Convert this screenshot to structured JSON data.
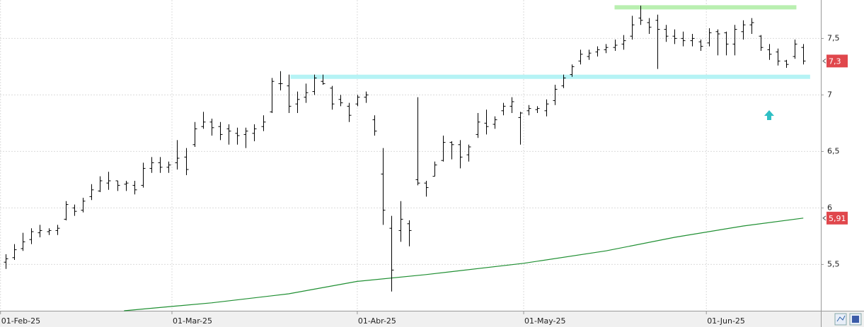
{
  "chart_data": {
    "type": "ohlc",
    "color": "#000000",
    "open": [
      5.52,
      5.56,
      5.64,
      5.72,
      5.78,
      5.79,
      5.8,
      5.9,
      6.0,
      5.98,
      6.1,
      6.15,
      6.22,
      6.24,
      6.21,
      6.2,
      6.2,
      6.35,
      6.4,
      6.36,
      6.4,
      6.45,
      6.56,
      6.72,
      6.76,
      6.72,
      6.7,
      6.66,
      6.65,
      6.66,
      6.72,
      6.85,
      7.1,
      7.08,
      6.92,
      6.98,
      7.03,
      7.12,
      7.06,
      6.96,
      6.9,
      6.92,
      6.98,
      6.78,
      6.3,
      5.82,
      5.8,
      5.86,
      6.25,
      6.22,
      6.28,
      6.42,
      6.58,
      6.56,
      6.47,
      6.65,
      6.75,
      6.74,
      6.86,
      6.9,
      6.8,
      6.86,
      6.87,
      6.86,
      6.95,
      7.08,
      7.18,
      7.3,
      7.34,
      7.38,
      7.4,
      7.42,
      7.45,
      7.52,
      7.68,
      7.64,
      7.66,
      7.58,
      7.52,
      7.5,
      7.48,
      7.47,
      7.46,
      7.56,
      7.55,
      7.45,
      7.56,
      7.62,
      7.52,
      7.4,
      7.38,
      7.3,
      7.34,
      7.42
    ],
    "high": [
      5.59,
      5.68,
      5.78,
      5.82,
      5.85,
      5.82,
      5.85,
      6.06,
      6.03,
      6.09,
      6.21,
      6.28,
      6.32,
      6.24,
      6.24,
      6.24,
      6.4,
      6.45,
      6.45,
      6.41,
      6.6,
      6.53,
      6.76,
      6.85,
      6.79,
      6.76,
      6.74,
      6.71,
      6.71,
      6.74,
      6.82,
      7.15,
      7.21,
      7.18,
      7.03,
      7.1,
      7.18,
      7.18,
      7.08,
      7.0,
      6.93,
      7.0,
      7.03,
      6.82,
      6.53,
      5.93,
      6.06,
      5.89,
      6.98,
      6.24,
      6.41,
      6.64,
      6.59,
      6.6,
      6.56,
      6.84,
      6.87,
      6.81,
      6.93,
      6.98,
      6.85,
      6.91,
      6.9,
      6.96,
      7.09,
      7.18,
      7.27,
      7.4,
      7.4,
      7.43,
      7.45,
      7.49,
      7.53,
      7.7,
      7.79,
      7.68,
      7.71,
      7.62,
      7.58,
      7.56,
      7.54,
      7.49,
      7.59,
      7.58,
      7.56,
      7.62,
      7.66,
      7.68,
      7.53,
      7.45,
      7.41,
      7.31,
      7.49,
      7.45
    ],
    "low": [
      5.46,
      5.54,
      5.62,
      5.68,
      5.74,
      5.76,
      5.76,
      5.89,
      5.93,
      5.96,
      6.07,
      6.14,
      6.16,
      6.15,
      6.15,
      6.12,
      6.18,
      6.31,
      6.31,
      6.31,
      6.34,
      6.29,
      6.54,
      6.7,
      6.64,
      6.6,
      6.56,
      6.56,
      6.53,
      6.59,
      6.68,
      6.84,
      7.04,
      6.84,
      6.84,
      6.93,
      7.0,
      7.09,
      6.87,
      6.9,
      6.76,
      6.9,
      6.93,
      6.64,
      5.85,
      5.26,
      5.7,
      5.66,
      6.2,
      6.1,
      6.28,
      6.41,
      6.43,
      6.35,
      6.41,
      6.62,
      6.65,
      6.7,
      6.82,
      6.84,
      6.56,
      6.82,
      6.84,
      6.81,
      6.91,
      7.06,
      7.16,
      7.27,
      7.31,
      7.34,
      7.37,
      7.39,
      7.4,
      7.49,
      7.62,
      7.54,
      7.23,
      7.47,
      7.45,
      7.43,
      7.43,
      7.39,
      7.43,
      7.35,
      7.35,
      7.35,
      7.49,
      7.54,
      7.39,
      7.31,
      7.26,
      7.24,
      7.32,
      7.27
    ],
    "close": [
      5.55,
      5.63,
      5.7,
      5.79,
      5.8,
      5.8,
      5.82,
      6.03,
      5.97,
      6.06,
      6.16,
      6.24,
      6.24,
      6.2,
      6.22,
      6.16,
      6.35,
      6.4,
      6.36,
      6.38,
      6.44,
      6.34,
      6.7,
      6.76,
      6.71,
      6.65,
      6.68,
      6.64,
      6.68,
      6.7,
      6.76,
      7.12,
      7.1,
      6.9,
      6.96,
      7.02,
      7.15,
      7.1,
      6.92,
      6.93,
      6.82,
      6.98,
      7.0,
      6.68,
      5.98,
      5.45,
      5.9,
      5.8,
      6.22,
      6.18,
      6.38,
      6.58,
      6.56,
      6.45,
      6.54,
      6.76,
      6.72,
      6.78,
      6.9,
      6.94,
      6.84,
      6.88,
      6.88,
      6.92,
      7.05,
      7.15,
      7.25,
      7.36,
      7.37,
      7.4,
      7.42,
      7.44,
      7.48,
      7.62,
      7.66,
      7.6,
      7.58,
      7.52,
      7.5,
      7.48,
      7.5,
      7.43,
      7.55,
      7.54,
      7.45,
      7.58,
      7.62,
      7.64,
      7.42,
      7.36,
      7.3,
      7.27,
      7.45,
      7.3
    ],
    "ma": {
      "color": "#1f8f32",
      "x": [
        13.8,
        24,
        33,
        41,
        49,
        60.4,
        70,
        78,
        86,
        93
      ],
      "values": [
        5.09,
        5.16,
        5.24,
        5.35,
        5.41,
        5.51,
        5.62,
        5.74,
        5.84,
        5.91
      ]
    },
    "levels": [
      {
        "value": 7.16,
        "x": [
          33.2,
          93.8
        ],
        "color": "#b5f3f5"
      },
      {
        "value": 7.775,
        "x": [
          71.0,
          92.2
        ],
        "color": "#b9efb0"
      }
    ],
    "last_price": {
      "value": 7.3,
      "label": "7,3"
    },
    "ma_last": {
      "value": 5.91,
      "label": "5,91"
    },
    "tag_color": "#e0474c",
    "xlim": [
      -0.66,
      95.05
    ],
    "xticks": [
      {
        "value": -0.6,
        "label": "01-Feb-25"
      },
      {
        "value": 19.39,
        "label": "01-Mar-25"
      },
      {
        "value": 41.0,
        "label": "01-Abr-25"
      },
      {
        "value": 60.4,
        "label": "01-May-25"
      },
      {
        "value": 81.7,
        "label": "01-Jun-25"
      }
    ],
    "ylim": [
      5.09,
      7.84
    ],
    "yticks": [
      {
        "value": 5.5,
        "label": "5,5"
      },
      6,
      {
        "value": 6.5,
        "label": "6,5"
      },
      7,
      {
        "value": 7.5,
        "label": "7,5"
      }
    ],
    "grid": true
  }
}
